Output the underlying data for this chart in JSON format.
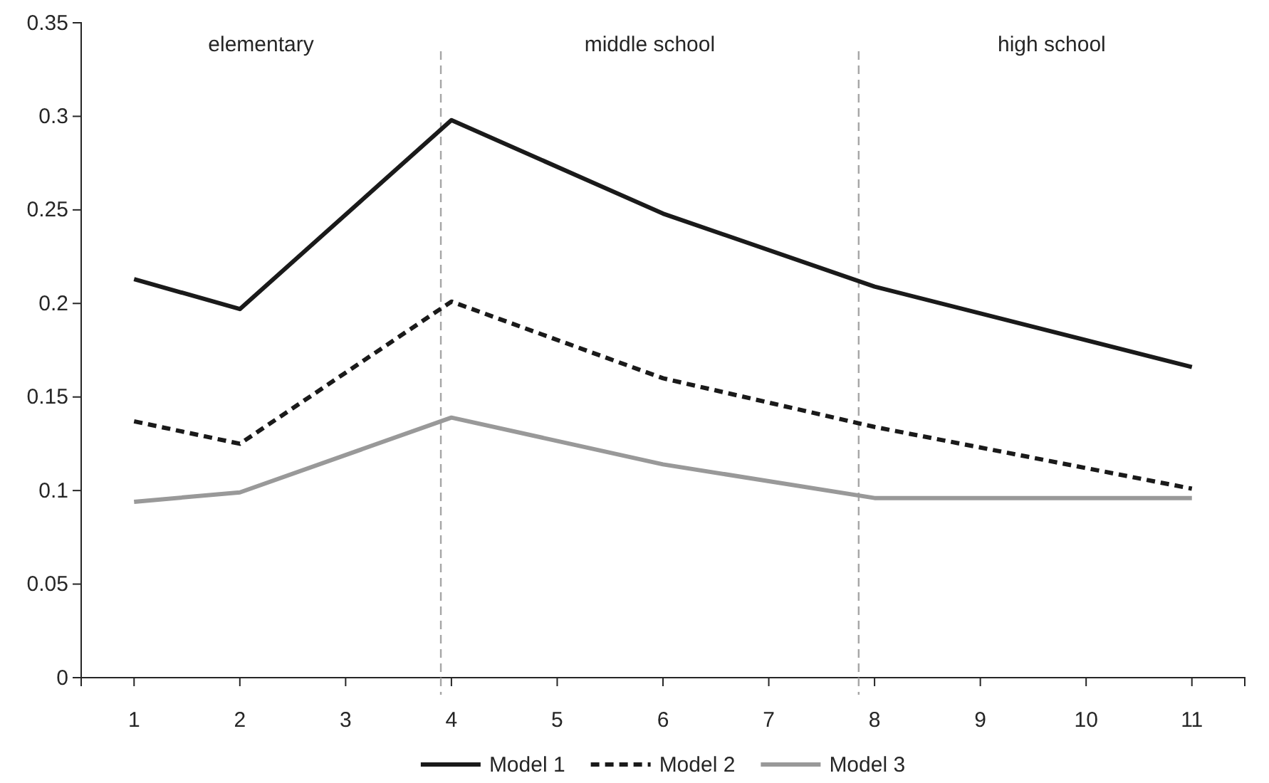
{
  "chart_data": {
    "type": "line",
    "x": [
      1,
      2,
      4,
      6,
      8,
      11
    ],
    "series": [
      {
        "name": "Model 1",
        "color": "#1a1a1a",
        "line_style": "solid",
        "values": [
          0.213,
          0.197,
          0.298,
          0.248,
          0.209,
          0.166
        ]
      },
      {
        "name": "Model 2",
        "color": "#1a1a1a",
        "line_style": "dashed",
        "values": [
          0.137,
          0.125,
          0.201,
          0.16,
          0.134,
          0.101
        ]
      },
      {
        "name": "Model 3",
        "color": "#999999",
        "line_style": "solid",
        "values": [
          0.094,
          0.099,
          0.139,
          0.114,
          0.096,
          0.096
        ]
      }
    ],
    "xlim": [
      0.5,
      11.5
    ],
    "xticks": [
      1,
      2,
      3,
      4,
      5,
      6,
      7,
      8,
      9,
      10,
      11
    ],
    "ylim": [
      0,
      0.35
    ],
    "yticks": [
      0,
      0.05,
      0.1,
      0.15,
      0.2,
      0.25,
      0.3,
      0.35
    ],
    "ref_lines": [
      {
        "axis": "x",
        "value": 3.9,
        "color": "#a6a6a6",
        "line_style": "dashed"
      },
      {
        "axis": "x",
        "value": 7.85,
        "color": "#a6a6a6",
        "line_style": "dashed"
      }
    ],
    "annotations": [
      "elementary",
      "middle school",
      "high school"
    ],
    "grid": false,
    "legend": "bottom",
    "marker": "none"
  }
}
